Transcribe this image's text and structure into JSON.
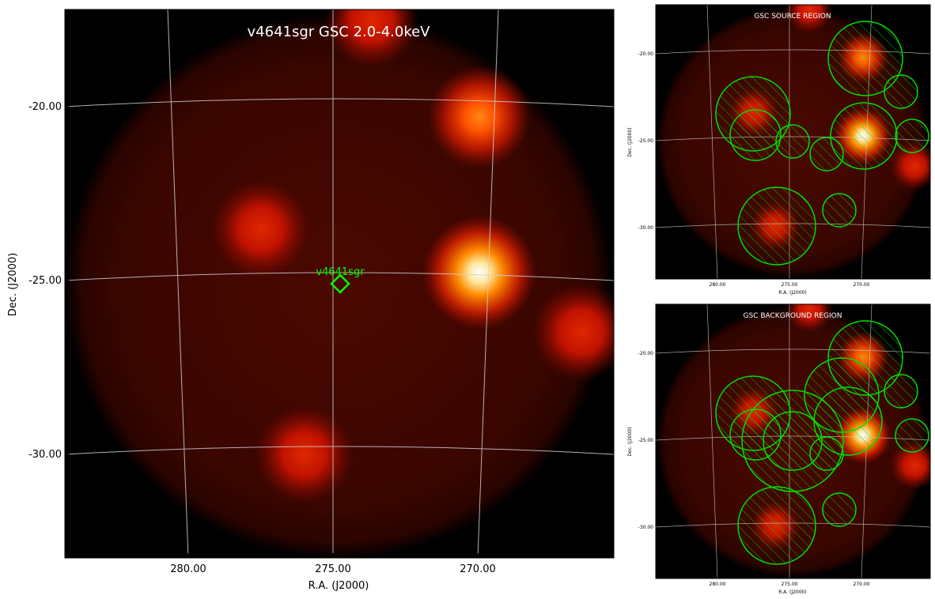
{
  "panels": {
    "main": {
      "title": "v4641sgr GSC 2.0-4.0keV",
      "source_label": "v4641sgr",
      "xlabel": "R.A. (J2000)",
      "ylabel": "Dec. (J2000)",
      "xticks": [
        "280.00",
        "275.00",
        "270.00"
      ],
      "yticks": [
        "-20.00",
        "-25.00",
        "-30.00"
      ]
    },
    "source_region": {
      "title": "GSC SOURCE REGION",
      "xlabel": "R.A. (J2000)",
      "ylabel": "Dec. (J2000)",
      "xticks": [
        "280.00",
        "275.00",
        "270.00"
      ],
      "yticks": [
        "-20.00",
        "-25.00",
        "-30.00"
      ]
    },
    "background_region": {
      "title": "GSC BACKGROUND REGION",
      "xlabel": "R.A. (J2000)",
      "ylabel": "Dec. (J2000)",
      "xticks": [
        "280.00",
        "275.00",
        "270.00"
      ],
      "yticks": [
        "-20.00",
        "-25.00",
        "-30.00"
      ]
    }
  },
  "colors": {
    "background": "#000000",
    "field_dark": "#3a0500",
    "source_hot": "#ffffff",
    "source_warm": "#ff6a00",
    "source_red": "#d01000",
    "region_green": "#00e000",
    "grid": "#cfcfcf"
  },
  "sources": [
    {
      "id": "s1",
      "ra": 269.8,
      "dec": -20.4,
      "intensity": 0.85
    },
    {
      "id": "s2",
      "ra": 277.6,
      "dec": -23.4,
      "intensity": 0.65
    },
    {
      "id": "s3",
      "ra": 269.9,
      "dec": -24.8,
      "intensity": 1.0
    },
    {
      "id": "s4",
      "ra": 266.4,
      "dec": -26.4,
      "intensity": 0.6
    },
    {
      "id": "s5",
      "ra": 275.9,
      "dec": -29.9,
      "intensity": 0.6
    },
    {
      "id": "s6",
      "ra": 273.6,
      "dec": -17.6,
      "intensity": 0.55
    }
  ]
}
